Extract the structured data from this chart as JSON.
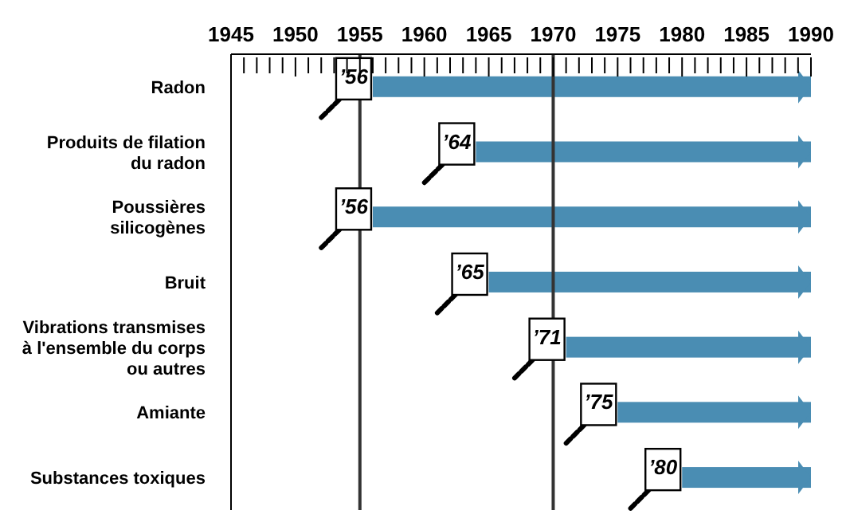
{
  "chart_data": {
    "type": "bar",
    "orientation": "horizontal",
    "categories": [
      "Radon",
      "Produits de filation du radon",
      "Poussières silicogènes",
      "Bruit",
      "Vibrations transmises à l'ensemble du corps ou autres",
      "Amiante",
      "Substances toxiques"
    ],
    "values": [
      34,
      26,
      34,
      25,
      19,
      15,
      10
    ],
    "base": [
      1956,
      1964,
      1956,
      1965,
      1971,
      1975,
      1980
    ],
    "annotations": [
      "’56",
      "’64",
      "’56",
      "’65",
      "’71",
      "’75",
      "’80"
    ],
    "color": "#4a8db3",
    "xlim": [
      1945,
      1990
    ],
    "xticks": [
      1945,
      {
        "value": 1946,
        "label": null
      },
      {
        "value": 1947,
        "label": null
      },
      {
        "value": 1948,
        "label": null
      },
      {
        "value": 1949,
        "label": null
      },
      1950,
      {
        "value": 1951,
        "label": null
      },
      {
        "value": 1952,
        "label": null
      },
      {
        "value": 1953,
        "label": null
      },
      {
        "value": 1954,
        "label": null
      },
      1955,
      {
        "value": 1956,
        "label": null
      },
      {
        "value": 1957,
        "label": null
      },
      {
        "value": 1958,
        "label": null
      },
      {
        "value": 1959,
        "label": null
      },
      1960,
      {
        "value": 1961,
        "label": null
      },
      {
        "value": 1962,
        "label": null
      },
      {
        "value": 1963,
        "label": null
      },
      {
        "value": 1964,
        "label": null
      },
      1965,
      {
        "value": 1966,
        "label": null
      },
      {
        "value": 1967,
        "label": null
      },
      {
        "value": 1968,
        "label": null
      },
      {
        "value": 1969,
        "label": null
      },
      1970,
      {
        "value": 1971,
        "label": null
      },
      {
        "value": 1972,
        "label": null
      },
      {
        "value": 1973,
        "label": null
      },
      {
        "value": 1974,
        "label": null
      },
      1975,
      {
        "value": 1976,
        "label": null
      },
      {
        "value": 1977,
        "label": null
      },
      {
        "value": 1978,
        "label": null
      },
      {
        "value": 1979,
        "label": null
      },
      1980,
      {
        "value": 1981,
        "label": null
      },
      {
        "value": 1982,
        "label": null
      },
      {
        "value": 1983,
        "label": null
      },
      {
        "value": 1984,
        "label": null
      },
      1985,
      {
        "value": 1986,
        "label": null
      },
      {
        "value": 1987,
        "label": null
      },
      {
        "value": 1988,
        "label": null
      },
      {
        "value": 1989,
        "label": null
      },
      1990
    ],
    "ref_lines": [
      {
        "axis": "x",
        "value": 1955,
        "color": "#333333"
      },
      {
        "axis": "x",
        "value": 1970,
        "color": "#333333"
      }
    ]
  }
}
